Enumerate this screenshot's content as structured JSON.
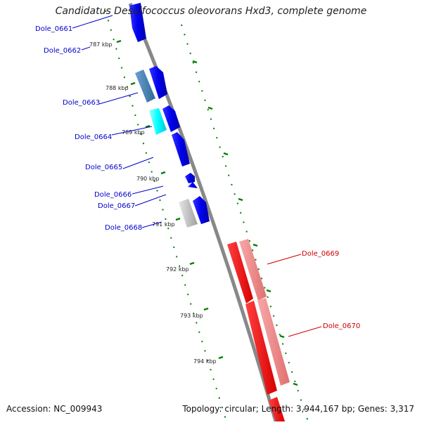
{
  "title": "Candidatus Desulfococcus oleovorans Hxd3, complete genome",
  "footer": {
    "accession": "Accession: NC_009943",
    "summary": "Topology: circular; Length: 3,944,167 bp; Genes: 3,317"
  },
  "colors": {
    "backbone": "#808080",
    "tick": "#008000",
    "forward_label": "#0000cc",
    "reverse_label": "#cc0000"
  },
  "ticks": [
    "787 kbp",
    "788 kbp",
    "789 kbp",
    "790 kbp",
    "791 kbp",
    "792 kbp",
    "793 kbp",
    "794 kbp"
  ],
  "genes": [
    {
      "id": "Dole_0661",
      "strand": "forward",
      "color": "#0000ee"
    },
    {
      "id": "Dole_0662",
      "strand": "forward",
      "color": "#0000ee"
    },
    {
      "id": "Dole_0663",
      "strand": "forward",
      "color": "#4682b4"
    },
    {
      "id": "Dole_0664",
      "strand": "forward",
      "color": "#00ffff"
    },
    {
      "id": "Dole_0665",
      "strand": "forward",
      "color": "#0000ee"
    },
    {
      "id": "Dole_0666",
      "strand": "forward",
      "color": "#0000ee"
    },
    {
      "id": "Dole_0667",
      "strand": "forward",
      "color": "#0000ee"
    },
    {
      "id": "Dole_0668",
      "strand": "forward",
      "color": "#c0c0c0"
    },
    {
      "id": "Dole_0669",
      "strand": "reverse",
      "color": "#ff0000"
    },
    {
      "id": "Dole_0670",
      "strand": "reverse",
      "color": "#f08080"
    }
  ]
}
